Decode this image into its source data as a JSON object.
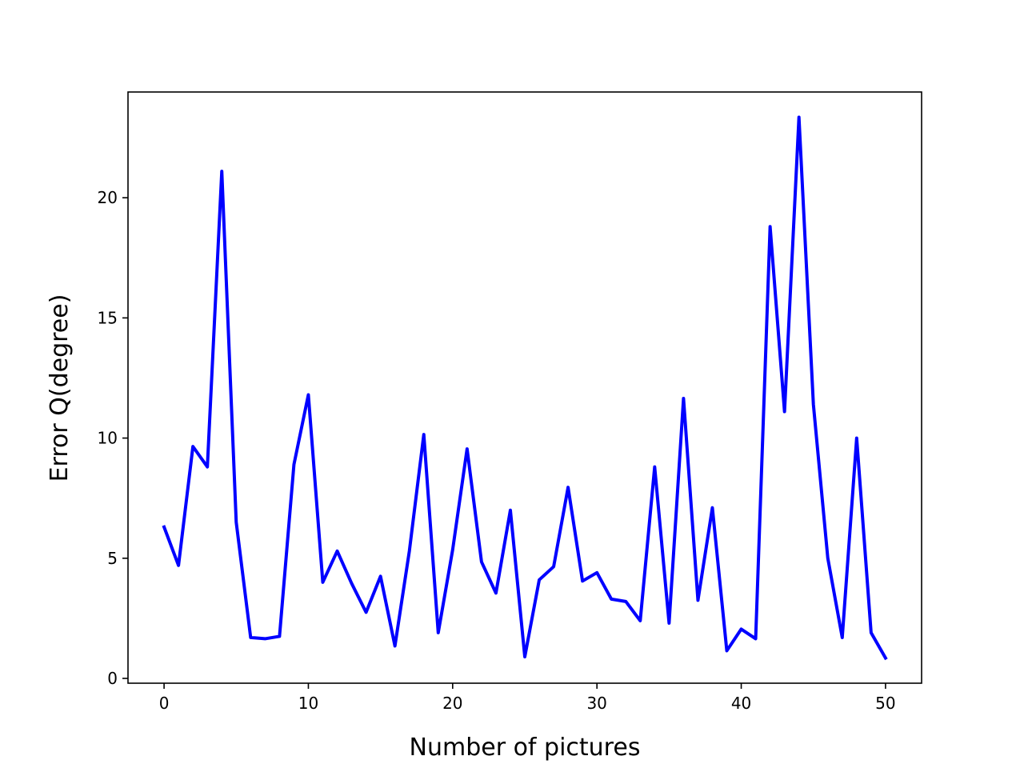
{
  "chart_data": {
    "type": "line",
    "title": "",
    "xlabel": "Number of pictures",
    "ylabel": "Error Q(degree)",
    "xlim": [
      -2.5,
      52.5
    ],
    "ylim": [
      -0.2,
      24.4
    ],
    "xticks": [
      0,
      10,
      20,
      30,
      40,
      50
    ],
    "yticks": [
      0,
      5,
      10,
      15,
      20
    ],
    "grid": false,
    "legend": "none",
    "series": [
      {
        "color": "#0000ff",
        "x": [
          0,
          1,
          2,
          3,
          4,
          5,
          6,
          7,
          8,
          9,
          10,
          11,
          12,
          13,
          14,
          15,
          16,
          17,
          18,
          19,
          20,
          21,
          22,
          23,
          24,
          25,
          26,
          27,
          28,
          29,
          30,
          31,
          32,
          33,
          34,
          35,
          36,
          37,
          38,
          39,
          40,
          41,
          42,
          43,
          44,
          45,
          46,
          47,
          48,
          49,
          50
        ],
        "values": [
          6.3,
          4.7,
          9.65,
          8.8,
          21.1,
          6.5,
          1.7,
          1.65,
          1.75,
          8.9,
          11.8,
          4.0,
          5.3,
          3.95,
          2.75,
          4.25,
          1.35,
          5.3,
          10.15,
          1.9,
          5.35,
          9.55,
          4.85,
          3.55,
          7.0,
          0.9,
          4.1,
          4.65,
          7.95,
          4.05,
          4.4,
          3.3,
          3.2,
          2.4,
          8.8,
          2.3,
          11.65,
          3.25,
          7.1,
          1.15,
          2.05,
          1.65,
          18.8,
          11.1,
          23.35,
          11.4,
          5.0,
          1.7,
          10.0,
          1.9,
          0.85
        ]
      }
    ]
  }
}
